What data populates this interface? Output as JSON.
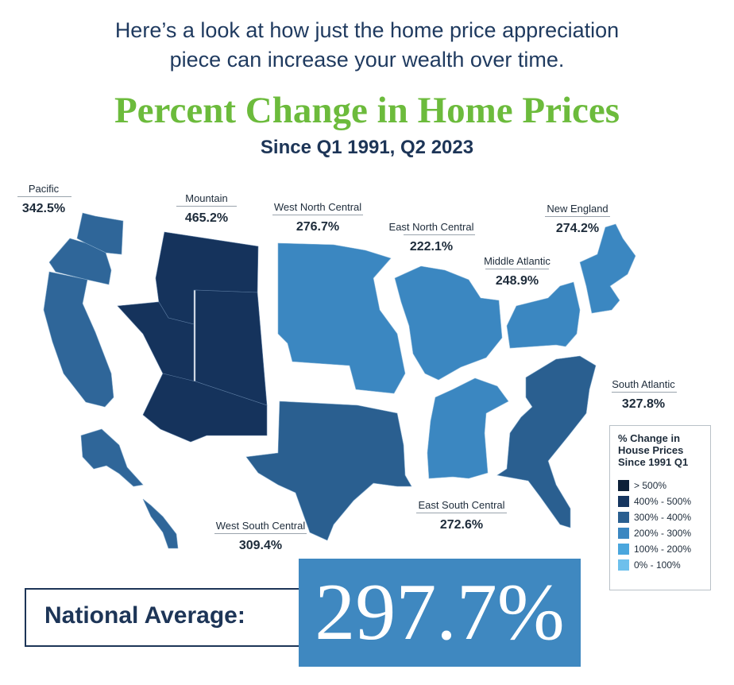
{
  "intro": {
    "line1": "Here’s a look at how just the home price appreciation",
    "line2": "piece can increase your wealth over time."
  },
  "title": "Percent Change in Home Prices",
  "subtitle": "Since Q1 1991, Q2 2023",
  "regions": {
    "pacific": {
      "name": "Pacific",
      "value": "342.5%",
      "color": "#2f6699"
    },
    "mountain": {
      "name": "Mountain",
      "value": "465.2%",
      "color": "#15335c"
    },
    "west_north_central": {
      "name": "West North Central",
      "value": "276.7%",
      "color": "#3b87c1"
    },
    "east_north_central": {
      "name": "East North Central",
      "value": "222.1%",
      "color": "#3b87c1"
    },
    "new_england": {
      "name": "New England",
      "value": "274.2%",
      "color": "#3b87c1"
    },
    "middle_atlantic": {
      "name": "Middle Atlantic",
      "value": "248.9%",
      "color": "#3b87c1"
    },
    "south_atlantic": {
      "name": "South Atlantic",
      "value": "327.8%",
      "color": "#2a5f90"
    },
    "west_south_central": {
      "name": "West South Central",
      "value": "309.4%",
      "color": "#2a5f90"
    },
    "east_south_central": {
      "name": "East South Central",
      "value": "272.6%",
      "color": "#3b87c1"
    }
  },
  "legend": {
    "title_line1": "% Change in",
    "title_line2": "House Prices",
    "title_line3": "Since 1991 Q1",
    "items": [
      {
        "label": "> 500%",
        "color": "#0e2038"
      },
      {
        "label": "400% - 500%",
        "color": "#163660"
      },
      {
        "label": "300% - 400%",
        "color": "#2a5f90"
      },
      {
        "label": "200% - 300%",
        "color": "#3b87c1"
      },
      {
        "label": "100% - 200%",
        "color": "#4aa6dd"
      },
      {
        "label": "0% - 100%",
        "color": "#6ec0ec"
      }
    ]
  },
  "national": {
    "label": "National Average:",
    "value": "297.7%"
  }
}
